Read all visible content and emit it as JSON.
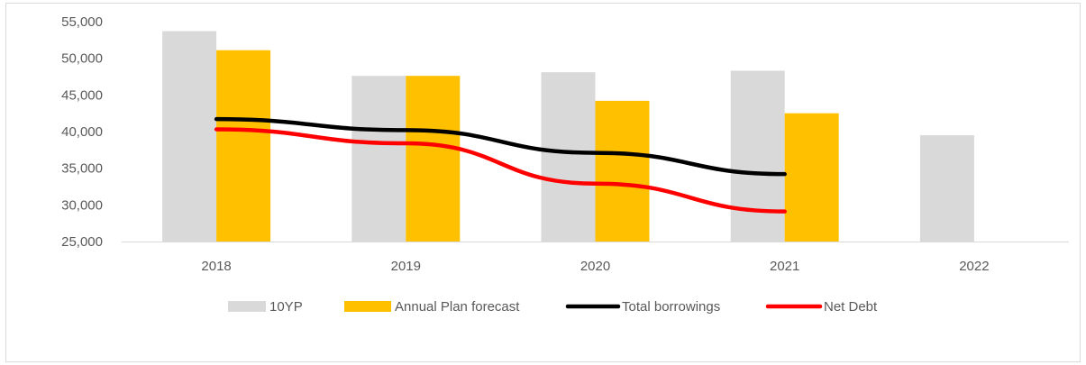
{
  "chart_data": {
    "type": "bar",
    "categories": [
      "2018",
      "2019",
      "2020",
      "2021",
      "2022"
    ],
    "series": [
      {
        "name": "10YP",
        "kind": "bar",
        "color": "#d9d9d9",
        "values": [
          53700,
          47600,
          48100,
          48300,
          39500
        ]
      },
      {
        "name": "Annual Plan forecast",
        "kind": "bar",
        "color": "#ffc000",
        "values": [
          51100,
          47600,
          44200,
          42500,
          null
        ]
      },
      {
        "name": "Total borrowings",
        "kind": "line",
        "color": "#000000",
        "values": [
          41700,
          40200,
          37100,
          34200,
          null
        ]
      },
      {
        "name": "Net Debt",
        "kind": "line",
        "color": "#ff0000",
        "values": [
          40300,
          38400,
          32900,
          29100,
          null
        ]
      }
    ],
    "y_ticks": [
      "25,000",
      "30,000",
      "35,000",
      "40,000",
      "45,000",
      "50,000",
      "55,000"
    ],
    "ylim": [
      25000,
      55000
    ],
    "grid": false,
    "legend_position": "bottom",
    "title": "",
    "xlabel": "",
    "ylabel": ""
  }
}
